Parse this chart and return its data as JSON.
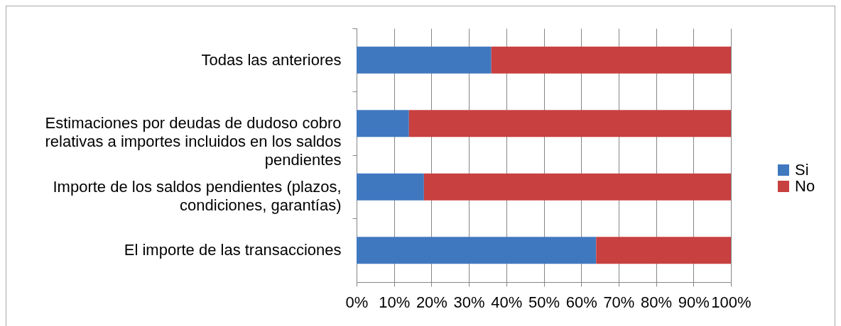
{
  "chart_data": {
    "type": "bar",
    "orientation": "horizontal",
    "stacked": true,
    "categories": [
      "Todas las anteriores",
      "Estimaciones por deudas de dudoso cobro relativas a importes incluidos en los saldos pendientes",
      "Importe de los saldos pendientes (plazos, condiciones, garantías)",
      "El importe de las transacciones"
    ],
    "series": [
      {
        "name": "Si",
        "color": "#4078c0",
        "values": [
          36,
          14,
          18,
          64
        ]
      },
      {
        "name": "No",
        "color": "#c84040",
        "values": [
          64,
          86,
          82,
          36
        ]
      }
    ],
    "xlim": [
      0,
      100
    ],
    "xticks": [
      {
        "value": 0,
        "label": "0%"
      },
      {
        "value": 10,
        "label": "10%"
      },
      {
        "value": 20,
        "label": "20%"
      },
      {
        "value": 30,
        "label": "30%"
      },
      {
        "value": 40,
        "label": "40%"
      },
      {
        "value": 50,
        "label": "50%"
      },
      {
        "value": 60,
        "label": "60%"
      },
      {
        "value": 70,
        "label": "70%"
      },
      {
        "value": 80,
        "label": "80%"
      },
      {
        "value": 90,
        "label": "90%"
      },
      {
        "value": 100,
        "label": "100%"
      }
    ],
    "grid": "x",
    "legend": "right"
  }
}
